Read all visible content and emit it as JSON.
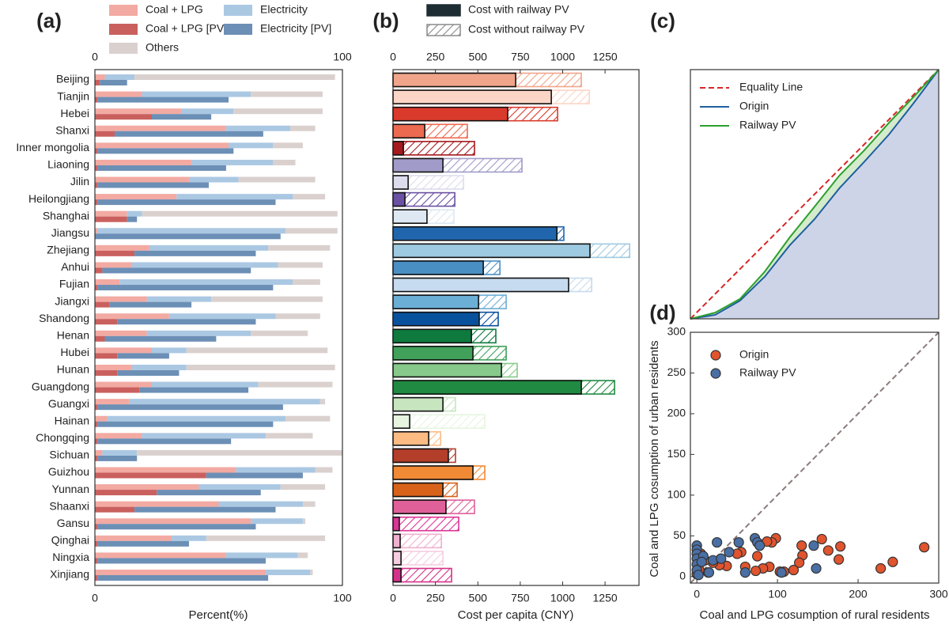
{
  "chart_data": [
    {
      "type": "bar",
      "title": "(a)",
      "xlabel": "Percent(%)",
      "xlim": [
        0,
        100
      ],
      "xticks": [
        0,
        100
      ],
      "categories": [
        "Beijing",
        "Tianjin",
        "Hebei",
        "Shanxi",
        "Inner mongolia",
        "Liaoning",
        "Jilin",
        "Heilongjiang",
        "Shanghai",
        "Jiangsu",
        "Zhejiang",
        "Anhui",
        "Fujian",
        "Jiangxi",
        "Shandong",
        "Henan",
        "Hubei",
        "Hunan",
        "Guangdong",
        "Guangxi",
        "Hainan",
        "Chongqing",
        "Sichuan",
        "Guizhou",
        "Yunnan",
        "Shaanxi",
        "Gansu",
        "Qinghai",
        "Ningxia",
        "Xinjiang"
      ],
      "series": [
        {
          "name": "Coal + LPG",
          "color": "#f2aaa2",
          "values": [
            4,
            19,
            35,
            53,
            54,
            39,
            38,
            33,
            13,
            1,
            22,
            15,
            10,
            21,
            30,
            21,
            23,
            15,
            23,
            14,
            5,
            19,
            3,
            57,
            42,
            50,
            63,
            31,
            53,
            69
          ]
        },
        {
          "name": "Electricity",
          "color": "#abc8e3",
          "values": [
            12,
            44,
            21,
            26,
            18,
            33,
            20,
            47,
            6,
            76,
            48,
            59,
            70,
            26,
            43,
            42,
            14,
            22,
            43,
            77,
            72,
            50,
            14,
            32,
            33,
            34,
            21,
            14,
            29,
            18
          ]
        },
        {
          "name": "Others",
          "color": "#dad1cf",
          "values": [
            81,
            29,
            36,
            10,
            12,
            9,
            31,
            13,
            79,
            21,
            25,
            18,
            11,
            45,
            18,
            23,
            57,
            60,
            30,
            2,
            18,
            19,
            83,
            7,
            18,
            5,
            1,
            48,
            4,
            1
          ]
        },
        {
          "name": "Coal + LPG [PV]",
          "color": "#c9605e",
          "values": [
            2,
            1,
            23,
            8,
            1,
            1,
            1,
            1,
            13,
            0,
            16,
            3,
            1,
            6,
            9,
            4,
            9,
            9,
            18,
            1,
            1,
            1,
            1,
            45,
            25,
            16,
            1,
            1,
            1,
            1
          ]
        },
        {
          "name": "Electricity [PV]",
          "color": "#6c8fb6",
          "values": [
            11,
            53,
            24,
            60,
            55,
            52,
            45,
            72,
            4,
            75,
            49,
            60,
            71,
            33,
            56,
            45,
            21,
            25,
            44,
            75,
            71,
            54,
            16,
            39,
            42,
            57,
            64,
            37,
            68,
            69
          ]
        }
      ]
    },
    {
      "type": "bar",
      "title": "(b)",
      "xlabel": "Cost per capita (CNY)",
      "xlim": [
        0,
        1450
      ],
      "xticks": [
        0,
        250,
        500,
        750,
        1000,
        1250
      ],
      "colors": [
        "#f0a58a",
        "#fbd5c5",
        "#d93a2b",
        "#ec6a50",
        "#a5191e",
        "#a09bc8",
        "#dcdcec",
        "#6a51a3",
        "#dde8f3",
        "#2166ac",
        "#9ecae1",
        "#4a8fc4",
        "#c6dbef",
        "#6baed6",
        "#08519c",
        "#0e7a3e",
        "#41a05a",
        "#86c98a",
        "#218a42",
        "#c7e6c0",
        "#e6f4e0",
        "#fdbb84",
        "#b33e2a",
        "#f08a35",
        "#d9621a",
        "#e0609a",
        "#dd3497",
        "#f0b0d0",
        "#f5cde0",
        "#d6318a"
      ],
      "series": [
        {
          "name": "Cost with railway PV",
          "color": "#1e2d33",
          "values": [
            723,
            933,
            676,
            187,
            61,
            294,
            89,
            70,
            200,
            966,
            1161,
            532,
            1035,
            504,
            508,
            462,
            471,
            639,
            1110,
            294,
            98,
            210,
            326,
            471,
            294,
            312,
            37,
            42,
            47,
            47
          ]
        },
        {
          "name": "Cost without railway PV",
          "color": "#8a8a8a",
          "values": [
            1110,
            1157,
            970,
            438,
            480,
            760,
            415,
            364,
            359,
            1007,
            1395,
            630,
            1171,
            667,
            620,
            606,
            667,
            732,
            1306,
            368,
            541,
            280,
            368,
            541,
            378,
            480,
            387,
            285,
            294,
            345
          ]
        }
      ]
    },
    {
      "type": "line",
      "title": "(c)",
      "xlim": [
        0,
        1
      ],
      "ylim": [
        0,
        1
      ],
      "series": [
        {
          "name": "Equality Line",
          "color": "#d62728",
          "x": [
            0,
            1
          ],
          "values": [
            0,
            1
          ]
        },
        {
          "name": "Origin",
          "color": "#1f5fa0",
          "x": [
            0,
            0.1,
            0.2,
            0.3,
            0.4,
            0.5,
            0.6,
            0.7,
            0.8,
            0.9,
            1
          ],
          "values": [
            0,
            0.016,
            0.073,
            0.17,
            0.295,
            0.4,
            0.524,
            0.63,
            0.74,
            0.867,
            1
          ]
        },
        {
          "name": "Railway PV",
          "color": "#2ca02c",
          "x": [
            0,
            0.1,
            0.2,
            0.3,
            0.4,
            0.5,
            0.6,
            0.7,
            0.8,
            0.9,
            1
          ],
          "values": [
            0,
            0.025,
            0.08,
            0.19,
            0.327,
            0.45,
            0.575,
            0.676,
            0.787,
            0.892,
            1
          ]
        }
      ]
    },
    {
      "type": "scatter",
      "title": "(d)",
      "xlabel": "Coal and LPG cosumption of rural residents",
      "ylabel": "Coal and LPG cosumption of urban residents",
      "xlim": [
        -8,
        300
      ],
      "ylim": [
        -8,
        300
      ],
      "xticks": [
        0,
        100,
        200,
        300
      ],
      "yticks": [
        0,
        50,
        100,
        150,
        200,
        250,
        300
      ],
      "series": [
        {
          "name": "Origin",
          "color": "#e0542e",
          "x": [
            282,
            243,
            228,
            176,
            178,
            155,
            163,
            130,
            131,
            127,
            120,
            108,
            103,
            98,
            93,
            87,
            90,
            82,
            75,
            73,
            60,
            55,
            50,
            37,
            28,
            20,
            14,
            10,
            5,
            0,
            3
          ],
          "values": [
            36,
            18,
            10,
            21,
            37,
            46,
            32,
            38,
            26,
            17,
            8,
            6,
            6,
            47,
            42,
            43,
            12,
            10,
            25,
            7,
            12,
            30,
            28,
            13,
            14,
            17,
            5,
            20,
            28,
            3,
            8
          ]
        },
        {
          "name": "Railway PV",
          "color": "#4a6fa5",
          "x": [
            0,
            0,
            0,
            0,
            0,
            0,
            2,
            8,
            20,
            25,
            30,
            40,
            52,
            60,
            72,
            75,
            78,
            105,
            145,
            148,
            15,
            6
          ],
          "values": [
            38,
            33,
            28,
            22,
            15,
            8,
            2,
            25,
            20,
            42,
            22,
            30,
            42,
            5,
            47,
            42,
            38,
            5,
            38,
            10,
            5,
            18
          ]
        }
      ]
    }
  ]
}
